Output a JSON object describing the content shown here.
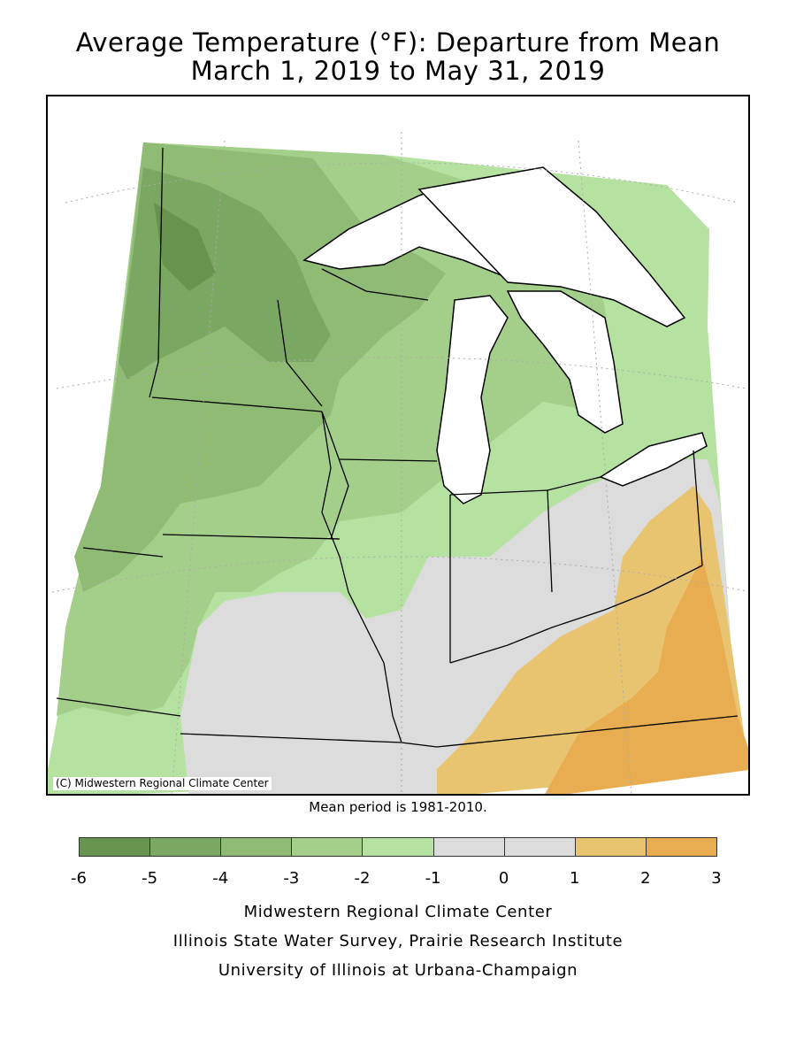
{
  "title_line1": "Average Temperature (°F): Departure from Mean",
  "title_line2": "March 1, 2019 to May 31, 2019",
  "copyright": "(C) Midwestern Regional Climate Center",
  "mean_note": "Mean period is 1981-2010.",
  "legend": {
    "ticks": [
      "-6",
      "-5",
      "-4",
      "-3",
      "-2",
      "-1",
      "0",
      "1",
      "2",
      "3"
    ],
    "colors": [
      "#66944e",
      "#7aa862",
      "#8fbb75",
      "#a4cf8a",
      "#b5e2a0",
      "#dcdcdc",
      "#dcdcdc",
      "#e8c470",
      "#e8ad50"
    ]
  },
  "colors": {
    "c_n6": "#66944e",
    "c_n5": "#7aa862",
    "c_n4": "#8fbb75",
    "c_n3": "#a4cf8a",
    "c_n2": "#b5e2a0",
    "c_0": "#dcdcdc",
    "c_p2": "#e8c470",
    "c_p3": "#e8ad50",
    "water": "#ffffff",
    "border": "#000000",
    "grid": "#aaaaaa"
  },
  "credits": [
    "Midwestern Regional Climate Center",
    "Illinois State Water Survey, Prairie Research Institute",
    "University of Illinois at Urbana-Champaign"
  ]
}
